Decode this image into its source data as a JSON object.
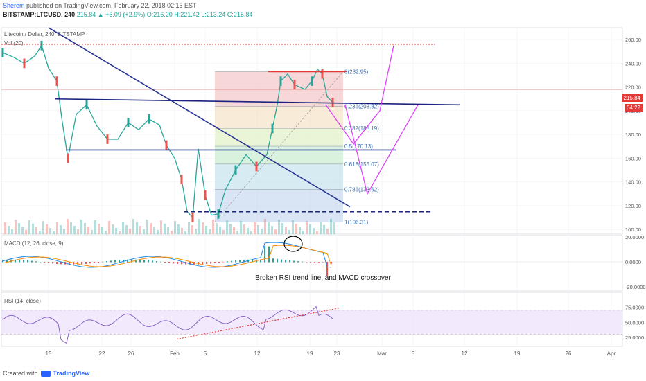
{
  "header": {
    "author": "Sherem",
    "publish_text": "published on TradingView.com, February 22, 2018 02:15 EST",
    "ticker": "BITSTAMP:LTCUSD, 240",
    "last": "215.84",
    "change": "▲ +6.09 (+2.9%)",
    "ohlc": "O:216.20 H:221.42 L:213.24 C:215.84"
  },
  "panes": {
    "main_title": "Litecoin / Dollar, 240, BITSTAMP",
    "vol_label": "Vol (20)",
    "macd_label": "MACD (12, 26, close, 9)",
    "rsi_label": "RSI (14, close)"
  },
  "price_tags": {
    "current": "215.84",
    "second": "04:22"
  },
  "annotation": "Broken RSI trend line, and MACD crossover",
  "footer": {
    "created_with": "Created with",
    "brand": "TradingView"
  },
  "chart_data": {
    "type": "line",
    "main": {
      "yticks": [
        100,
        120,
        140,
        160,
        180,
        200,
        220,
        240,
        260
      ],
      "ylim": [
        96,
        270
      ],
      "fib_levels": [
        {
          "label": "0(232.95)",
          "value": 232.95
        },
        {
          "label": "0.236(203.82)",
          "value": 203.82
        },
        {
          "label": "0.382(185.19)",
          "value": 185.19
        },
        {
          "label": "0.5(170.13)",
          "value": 170.13
        },
        {
          "label": "0.618(155.07)",
          "value": 155.07
        },
        {
          "label": "0.786(133.62)",
          "value": 133.62
        },
        {
          "label": "1(106.31)",
          "value": 106.31
        }
      ],
      "xticks": [
        "15",
        "22",
        "26",
        "Feb",
        "5",
        "12",
        "19",
        "23",
        "Mar",
        "5",
        "12",
        "19",
        "26",
        "Apr"
      ]
    },
    "macd": {
      "yticks": [
        "20.0000",
        "0.0000",
        "-20.0000"
      ]
    },
    "rsi": {
      "yticks": [
        "75.0000",
        "50.0000",
        "25.0000"
      ]
    }
  }
}
